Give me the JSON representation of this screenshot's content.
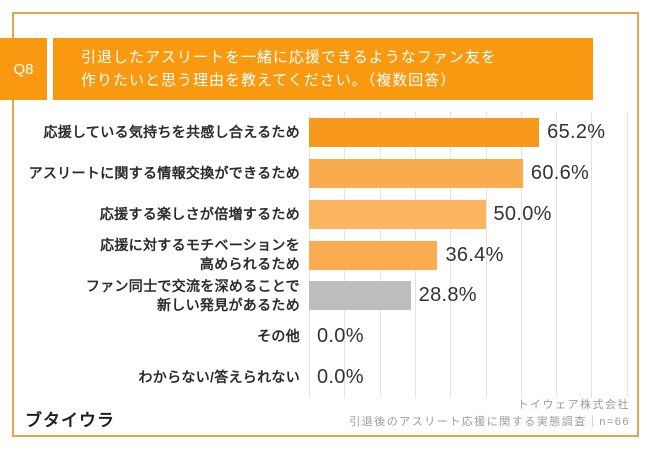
{
  "header": {
    "question_number": "Q8",
    "question_text": "引退したアスリートを一緒に応援できるようなファン友を\n作りたいと思う理由を教えてください。（複数回答）",
    "accent_color": "#F8990F"
  },
  "chart_data": {
    "type": "bar",
    "orientation": "horizontal",
    "title": "引退したアスリートを一緒に応援できるようなファン友を作りたいと思う理由を教えてください。（複数回答）",
    "categories": [
      "応援している気持ちを共感し合えるため",
      "アスリートに関する情報交換ができるため",
      "応援する楽しさが倍増するため",
      "応援に対するモチベーションを\n高められるため",
      "ファン同士で交流を深めることで\n新しい発見があるため",
      "その他",
      "わからない/答えられない"
    ],
    "values": [
      65.2,
      60.6,
      50.0,
      36.4,
      28.8,
      0.0,
      0.0
    ],
    "value_labels": [
      "65.2%",
      "60.6%",
      "50.0%",
      "36.4%",
      "28.8%",
      "0.0%",
      "0.0%"
    ],
    "bar_colors": [
      "#F8991D",
      "#FAAB4D",
      "#FBB55F",
      "#FBAC50",
      "#BDBDBD",
      "#FBAC50",
      "#FBAC50"
    ],
    "xlim": [
      0,
      90
    ],
    "gridline_interval_percent": 10,
    "grid": true,
    "legend": "none"
  },
  "footer": {
    "brand": "ブタイウラ",
    "company": "トイウェア株式会社",
    "survey_note": "引退後のアスリート応援に関する実態調査｜n=66"
  },
  "colors": {
    "frame": "#E2A74A",
    "grid": "#E4E4E4",
    "bar_strong": "#F8991D",
    "bar_gray": "#BDBDBD",
    "text_dark": "#333333",
    "text_muted": "#9B9B9B"
  }
}
